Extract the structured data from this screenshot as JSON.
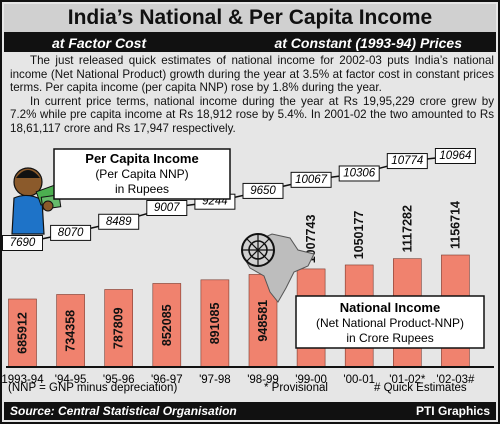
{
  "title": "India’s National & Per Capita Income",
  "subheading": {
    "left": "at Factor Cost",
    "right": "at Constant (1993-94) Prices"
  },
  "body": {
    "p1": "The just released quick estimates of national income for 2002-03 puts India’s national income (Net National Product) growth during the year at 3.5% at factor cost in constant prices terms. Per capita income (per capita NNP) rose by 1.8% during the year.",
    "p2": "In current price terms, national income during the year at Rs 19,95,229 crore grew by 7.2% while pre capita income at Rs 18,912 rose by 5.4%. In 2001-02 the two amounted to Rs 18,61,117 crore and Rs 17,947 respectively."
  },
  "footnotes": {
    "nnp": "(NNP = GNP minus depreciation)",
    "provisional": "* Provisional",
    "quick": "# Quick Estimates"
  },
  "footer": {
    "source": "Source: Central Statistical Organisation",
    "credit": "PTI Graphics"
  },
  "colors": {
    "bar": "#f0826e",
    "line": "#111111",
    "band": "#111111",
    "background": "#e6e6e6"
  },
  "chart_data": {
    "type": "bar",
    "categories": [
      "1993-94",
      "'94-95",
      "'95-96",
      "'96-97",
      "'97-98",
      "'98-99",
      "'99-00",
      "'00-01",
      "'01-02*",
      "'02-03#"
    ],
    "series": [
      {
        "name": "National Income",
        "legend_lines": [
          "National Income",
          "(Net National Product-NNP)",
          "in Crore Rupees"
        ],
        "type": "bar",
        "values": [
          685912,
          734358,
          787809,
          852085,
          891085,
          948581,
          1007743,
          1050177,
          1117282,
          1156714
        ]
      },
      {
        "name": "Per Capita Income",
        "legend_lines": [
          "Per Capita Income",
          "(Per Capita NNP)",
          "in Rupees"
        ],
        "type": "line",
        "values": [
          7690,
          8070,
          8489,
          9007,
          9244,
          9650,
          10067,
          10306,
          10774,
          10964
        ]
      }
    ]
  }
}
